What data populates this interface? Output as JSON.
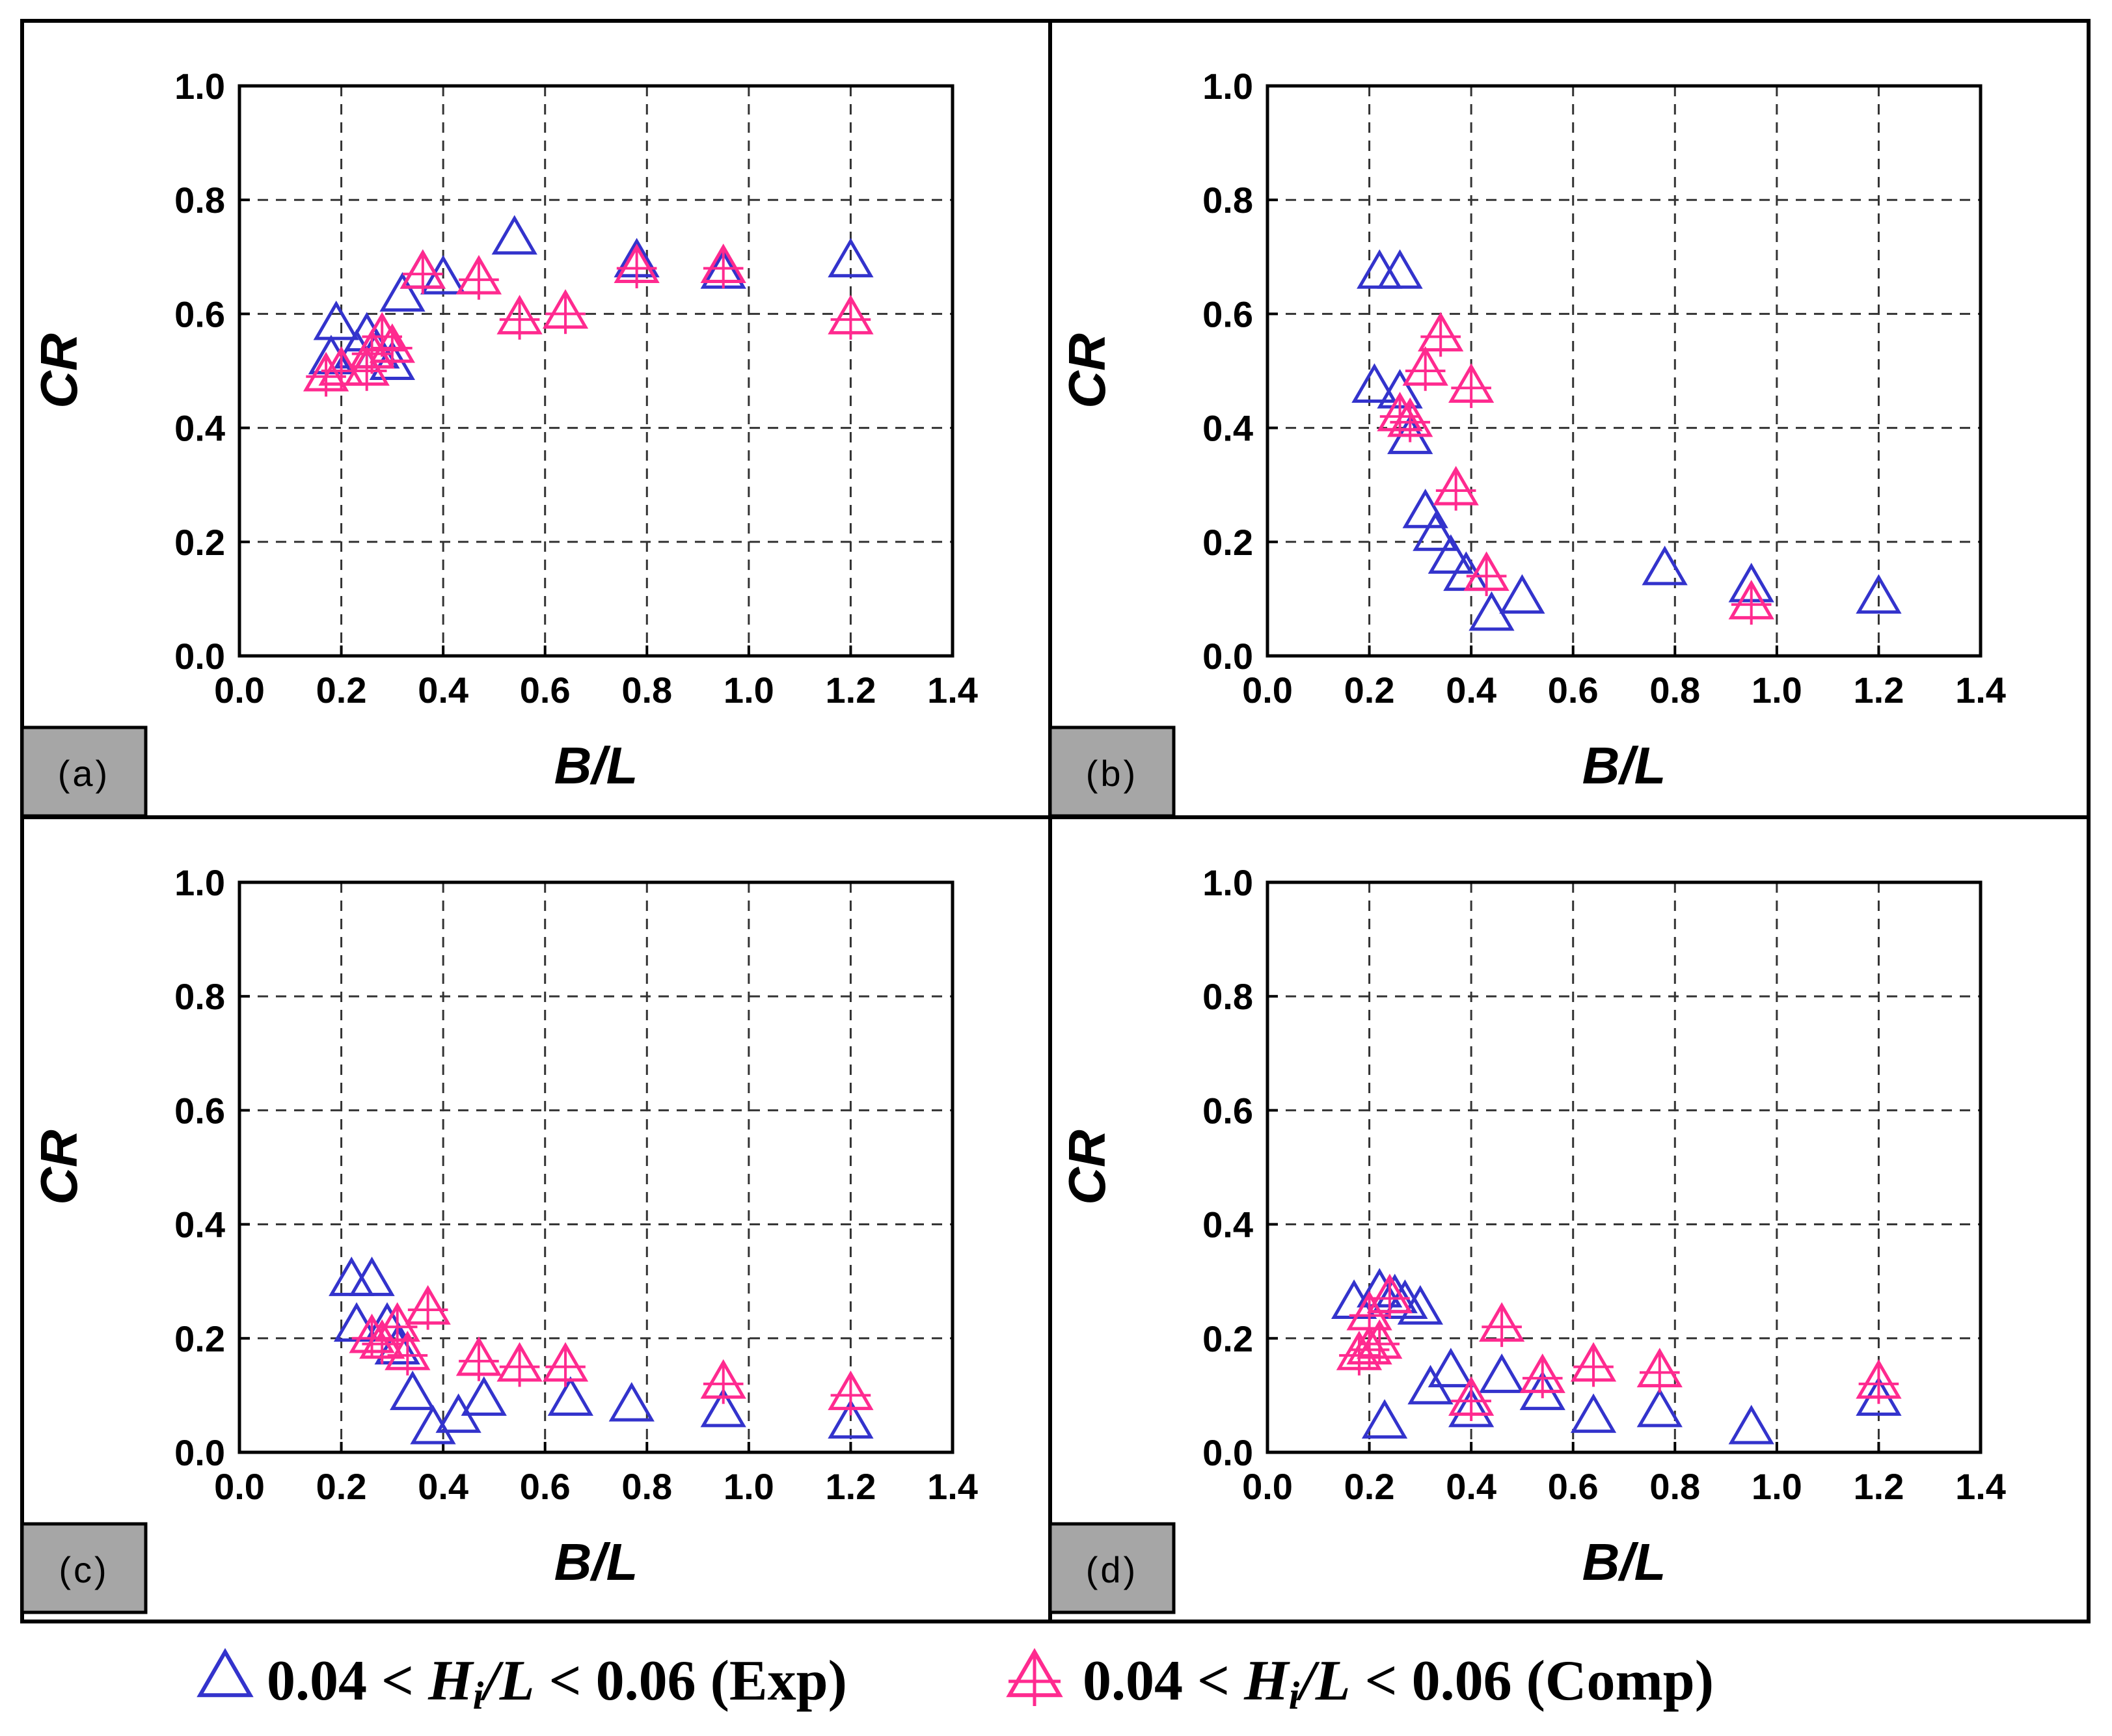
{
  "chart_data": [
    {
      "panel": "(a)",
      "type": "scatter",
      "xlabel": "B/L",
      "ylabel": "CR",
      "xlim": [
        0.0,
        1.4
      ],
      "ylim": [
        0.0,
        1.0
      ],
      "xticks": [
        "0.0",
        "0.2",
        "0.4",
        "0.6",
        "0.8",
        "1.0",
        "1.2",
        "1.4"
      ],
      "yticks": [
        "0.0",
        "0.2",
        "0.4",
        "0.6",
        "0.8",
        "1.0"
      ],
      "grid": true,
      "series": [
        {
          "name": "0.04 < Hi/L < 0.06 (Exp)",
          "marker": "triangle",
          "points": [
            [
              0.18,
              0.52
            ],
            [
              0.19,
              0.58
            ],
            [
              0.23,
              0.53
            ],
            [
              0.25,
              0.56
            ],
            [
              0.27,
              0.53
            ],
            [
              0.3,
              0.51
            ],
            [
              0.32,
              0.63
            ],
            [
              0.36,
              0.67
            ],
            [
              0.4,
              0.66
            ],
            [
              0.54,
              0.73
            ],
            [
              0.78,
              0.69
            ],
            [
              0.95,
              0.67
            ],
            [
              1.2,
              0.69
            ]
          ]
        },
        {
          "name": "0.04 < Hi/L < 0.06 (Comp)",
          "marker": "triangle-cross",
          "points": [
            [
              0.17,
              0.49
            ],
            [
              0.2,
              0.5
            ],
            [
              0.25,
              0.5
            ],
            [
              0.26,
              0.53
            ],
            [
              0.28,
              0.56
            ],
            [
              0.3,
              0.54
            ],
            [
              0.36,
              0.67
            ],
            [
              0.47,
              0.66
            ],
            [
              0.55,
              0.59
            ],
            [
              0.64,
              0.6
            ],
            [
              0.78,
              0.68
            ],
            [
              0.95,
              0.68
            ],
            [
              1.2,
              0.59
            ]
          ]
        }
      ]
    },
    {
      "panel": "(b)",
      "type": "scatter",
      "xlabel": "B/L",
      "ylabel": "CR",
      "xlim": [
        0.0,
        1.4
      ],
      "ylim": [
        0.0,
        1.0
      ],
      "xticks": [
        "0.0",
        "0.2",
        "0.4",
        "0.6",
        "0.8",
        "1.0",
        "1.2",
        "1.4"
      ],
      "yticks": [
        "0.0",
        "0.2",
        "0.4",
        "0.6",
        "0.8",
        "1.0"
      ],
      "grid": true,
      "series": [
        {
          "name": "0.04 < Hi/L < 0.06 (Exp)",
          "marker": "triangle",
          "points": [
            [
              0.22,
              0.67
            ],
            [
              0.26,
              0.67
            ],
            [
              0.21,
              0.47
            ],
            [
              0.26,
              0.46
            ],
            [
              0.28,
              0.38
            ],
            [
              0.31,
              0.25
            ],
            [
              0.33,
              0.21
            ],
            [
              0.36,
              0.17
            ],
            [
              0.39,
              0.14
            ],
            [
              0.44,
              0.07
            ],
            [
              0.5,
              0.1
            ],
            [
              0.78,
              0.15
            ],
            [
              0.95,
              0.12
            ],
            [
              1.2,
              0.1
            ]
          ]
        },
        {
          "name": "0.04 < Hi/L < 0.06 (Comp)",
          "marker": "triangle-cross",
          "points": [
            [
              0.34,
              0.56
            ],
            [
              0.31,
              0.5
            ],
            [
              0.4,
              0.47
            ],
            [
              0.26,
              0.42
            ],
            [
              0.28,
              0.41
            ],
            [
              0.37,
              0.29
            ],
            [
              0.43,
              0.14
            ],
            [
              0.95,
              0.09
            ]
          ]
        }
      ]
    },
    {
      "panel": "(c)",
      "type": "scatter",
      "xlabel": "B/L",
      "ylabel": "CR",
      "xlim": [
        0.0,
        1.4
      ],
      "ylim": [
        0.0,
        1.0
      ],
      "xticks": [
        "0.0",
        "0.2",
        "0.4",
        "0.6",
        "0.8",
        "1.0",
        "1.2",
        "1.4"
      ],
      "yticks": [
        "0.0",
        "0.2",
        "0.4",
        "0.6",
        "0.8",
        "1.0"
      ],
      "grid": true,
      "series": [
        {
          "name": "0.04 < Hi/L < 0.06 (Exp)",
          "marker": "triangle",
          "points": [
            [
              0.22,
              0.3
            ],
            [
              0.26,
              0.3
            ],
            [
              0.23,
              0.22
            ],
            [
              0.29,
              0.22
            ],
            [
              0.31,
              0.18
            ],
            [
              0.34,
              0.1
            ],
            [
              0.38,
              0.04
            ],
            [
              0.43,
              0.06
            ],
            [
              0.48,
              0.09
            ],
            [
              0.65,
              0.09
            ],
            [
              0.77,
              0.08
            ],
            [
              0.95,
              0.07
            ],
            [
              1.2,
              0.05
            ]
          ]
        },
        {
          "name": "0.04 < Hi/L < 0.06 (Comp)",
          "marker": "triangle-cross",
          "points": [
            [
              0.37,
              0.25
            ],
            [
              0.31,
              0.22
            ],
            [
              0.26,
              0.2
            ],
            [
              0.28,
              0.19
            ],
            [
              0.33,
              0.17
            ],
            [
              0.47,
              0.16
            ],
            [
              0.55,
              0.15
            ],
            [
              0.64,
              0.15
            ],
            [
              0.95,
              0.12
            ],
            [
              1.2,
              0.1
            ]
          ]
        }
      ]
    },
    {
      "panel": "(d)",
      "type": "scatter",
      "xlabel": "B/L",
      "ylabel": "CR",
      "xlim": [
        0.0,
        1.4
      ],
      "ylim": [
        0.0,
        1.0
      ],
      "xticks": [
        "0.0",
        "0.2",
        "0.4",
        "0.6",
        "0.8",
        "1.0",
        "1.2",
        "1.4"
      ],
      "yticks": [
        "0.0",
        "0.2",
        "0.4",
        "0.6",
        "0.8",
        "1.0"
      ],
      "grid": true,
      "series": [
        {
          "name": "0.04 < Hi/L < 0.06 (Exp)",
          "marker": "triangle",
          "points": [
            [
              0.17,
              0.26
            ],
            [
              0.22,
              0.28
            ],
            [
              0.25,
              0.27
            ],
            [
              0.27,
              0.26
            ],
            [
              0.3,
              0.25
            ],
            [
              0.23,
              0.05
            ],
            [
              0.32,
              0.11
            ],
            [
              0.36,
              0.14
            ],
            [
              0.4,
              0.07
            ],
            [
              0.46,
              0.13
            ],
            [
              0.54,
              0.1
            ],
            [
              0.64,
              0.06
            ],
            [
              0.77,
              0.07
            ],
            [
              0.95,
              0.04
            ],
            [
              1.2,
              0.09
            ]
          ]
        },
        {
          "name": "0.04 < Hi/L < 0.06 (Comp)",
          "marker": "triangle-cross",
          "points": [
            [
              0.2,
              0.24
            ],
            [
              0.24,
              0.27
            ],
            [
              0.18,
              0.17
            ],
            [
              0.2,
              0.18
            ],
            [
              0.22,
              0.19
            ],
            [
              0.46,
              0.22
            ],
            [
              0.4,
              0.09
            ],
            [
              0.54,
              0.13
            ],
            [
              0.64,
              0.15
            ],
            [
              0.77,
              0.14
            ],
            [
              1.2,
              0.12
            ]
          ]
        }
      ]
    }
  ],
  "legend": {
    "exp_label_prefix": "0.04 < ",
    "var_H": "H",
    "var_i": "i",
    "var_L": "/L",
    "exp_label_suffix": " < 0.06 (Exp)",
    "comp_label_suffix": " < 0.06 (Comp)"
  },
  "colors": {
    "exp": "#3333cc",
    "comp": "#ff2a8f",
    "grid": "#333333",
    "tag_bg": "#a6a6a6"
  }
}
